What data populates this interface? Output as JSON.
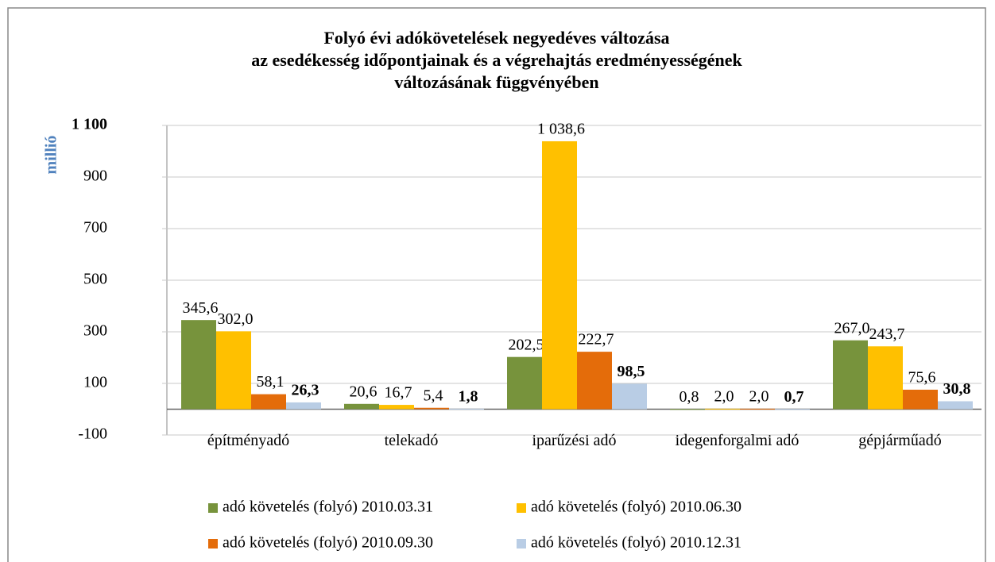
{
  "chart_data": {
    "type": "bar",
    "title": [
      "Folyó évi adókövetelések negyedéves változása",
      "az esedékesség időpontjainak és a végrehajtás eredményességének",
      "változásának függvényében"
    ],
    "y_label": "millió",
    "categories": [
      "építményadó",
      "telekadó",
      "iparűzési adó",
      "idegenforgalmi adó",
      "gépjárműadó"
    ],
    "series": [
      {
        "name": "adó követelés (folyó) 2010.03.31",
        "color": "#77933c",
        "values": [
          345.6,
          20.6,
          202.5,
          0.8,
          267.0
        ],
        "value_labels": [
          "345,6",
          "20,6",
          "202,5",
          "0,8",
          "267,0"
        ]
      },
      {
        "name": "adó követelés (folyó) 2010.06.30",
        "color": "#ffc000",
        "values": [
          302.0,
          16.7,
          1038.6,
          2.0,
          243.7
        ],
        "value_labels": [
          "302,0",
          "16,7",
          "1 038,6",
          "2,0",
          "243,7"
        ]
      },
      {
        "name": "adó követelés (folyó) 2010.09.30",
        "color": "#e46c0a",
        "values": [
          58.1,
          5.4,
          222.7,
          2.0,
          75.6
        ],
        "value_labels": [
          "58,1",
          "5,4",
          "222,7",
          "2,0",
          "75,6"
        ]
      },
      {
        "name": "adó követelés (folyó) 2010.12.31",
        "color": "#b9cde5",
        "values": [
          26.3,
          1.8,
          98.5,
          0.7,
          30.8
        ],
        "value_labels": [
          "26,3",
          "1,8",
          "98,5",
          "0,7",
          "30,8"
        ]
      }
    ],
    "ylim": [
      -100,
      1100
    ],
    "yticks": [
      -100,
      100,
      300,
      500,
      700,
      900,
      {
        "value": 1100,
        "label": "1 100"
      }
    ],
    "grid": true,
    "legend": "bottom"
  }
}
